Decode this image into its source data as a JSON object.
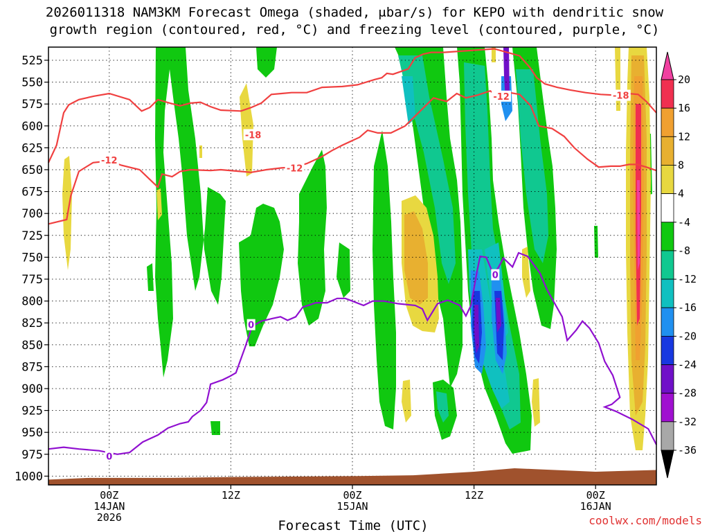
{
  "chart_data": {
    "type": "time-height cross-section",
    "title_line1": "2026011318 NAM3KM Forecast Omega (shaded, μbar/s) for KEPO with dendritic snow",
    "title_line2": "growth region (contoured, red, °C) and freezing level (contoured, purple, °C)",
    "xlabel": "Forecast Time (UTC)",
    "credit": "coolwx.com/models",
    "x_range_hours": [
      -6,
      54
    ],
    "y_range_hpa": [
      510,
      1010
    ],
    "pressure_levels": [
      525,
      550,
      575,
      600,
      625,
      650,
      675,
      700,
      725,
      750,
      775,
      800,
      825,
      850,
      875,
      900,
      925,
      950,
      975,
      1000
    ],
    "x_ticks": [
      {
        "hour": 0,
        "line1": "00Z",
        "line2": "14JAN",
        "line3": "2026"
      },
      {
        "hour": 12,
        "line1": "12Z",
        "line2": "",
        "line3": ""
      },
      {
        "hour": 24,
        "line1": "00Z",
        "line2": "15JAN",
        "line3": ""
      },
      {
        "hour": 36,
        "line1": "12Z",
        "line2": "",
        "line3": ""
      },
      {
        "hour": 48,
        "line1": "00Z",
        "line2": "16JAN",
        "line3": ""
      }
    ],
    "colorbar": {
      "labels": [
        "20",
        "16",
        "12",
        "8",
        "4",
        "-4",
        "-8",
        "-12",
        "-16",
        "-20",
        "-24",
        "-28",
        "-32",
        "-36"
      ],
      "bins": [
        {
          "range": "16 to 20",
          "color": "#f03050"
        },
        {
          "range": "12 to 16",
          "color": "#f0a030"
        },
        {
          "range": "8 to 12",
          "color": "#e8b030"
        },
        {
          "range": "4 to 8",
          "color": "#e8d840"
        },
        {
          "range": "-4 to 4",
          "color": "#ffffff"
        },
        {
          "range": "-8 to -4",
          "color": "#10c810"
        },
        {
          "range": "-12 to -8",
          "color": "#10c890"
        },
        {
          "range": "-16 to -12",
          "color": "#10c0c0"
        },
        {
          "range": "-20 to -16",
          "color": "#2090f0"
        },
        {
          "range": "-24 to -20",
          "color": "#1838e0"
        },
        {
          "range": "-28 to -24",
          "color": "#7010c8"
        },
        {
          "range": "-32 to -28",
          "color": "#a010d0"
        },
        {
          "range": "-36 to -32",
          "color": "#a8a8a8"
        }
      ],
      "top_cap_color": "#f040a0",
      "bottom_cap_color": "#000000"
    },
    "colors": {
      "dgz_line": "#f04040",
      "freezing_line": "#9010d0",
      "terrain": "#a0522d",
      "grid": "#000000"
    },
    "contour_labels": [
      {
        "text": "-12",
        "hour": 0,
        "p": 639,
        "color": "#f04040"
      },
      {
        "text": "-18",
        "hour": 14.2,
        "p": 610,
        "color": "#f04040"
      },
      {
        "text": "-12",
        "hour": 18.3,
        "p": 648,
        "color": "#f04040"
      },
      {
        "text": "-12",
        "hour": 38.7,
        "p": 566,
        "color": "#f04040"
      },
      {
        "text": "-18",
        "hour": 50.5,
        "p": 565,
        "color": "#f04040"
      },
      {
        "text": "0",
        "hour": 0,
        "p": 977,
        "color": "#9010d0"
      },
      {
        "text": "0",
        "hour": 14,
        "p": 827,
        "color": "#9010d0"
      },
      {
        "text": "0",
        "hour": 38.1,
        "p": 770,
        "color": "#9010d0"
      }
    ],
    "dgz_upper_line": [
      [
        -6,
        712
      ],
      [
        -4.2,
        707
      ],
      [
        -3.8,
        680
      ],
      [
        -3,
        652
      ],
      [
        -1.6,
        642
      ],
      [
        0,
        640
      ],
      [
        1.2,
        645
      ],
      [
        3,
        650
      ],
      [
        4.8,
        670
      ],
      [
        5.2,
        655
      ],
      [
        6.2,
        658
      ],
      [
        7,
        652
      ],
      [
        8,
        650
      ],
      [
        10,
        651
      ],
      [
        11,
        650
      ],
      [
        13,
        652
      ],
      [
        14,
        653
      ],
      [
        15.5,
        650
      ],
      [
        17,
        648
      ],
      [
        18.3,
        647
      ],
      [
        19.5,
        643
      ],
      [
        21,
        635
      ],
      [
        22,
        628
      ],
      [
        23,
        622
      ],
      [
        24.7,
        613
      ],
      [
        25.5,
        605
      ],
      [
        26.5,
        608
      ],
      [
        27.8,
        608
      ],
      [
        29.2,
        600
      ],
      [
        32,
        568
      ],
      [
        33.3,
        572
      ],
      [
        34.3,
        563
      ],
      [
        35.2,
        568
      ],
      [
        36.3,
        565
      ],
      [
        37.6,
        560
      ],
      [
        38.6,
        568
      ],
      [
        39.5,
        562
      ],
      [
        40.5,
        564
      ],
      [
        41.6,
        577
      ],
      [
        42.4,
        600
      ],
      [
        43.7,
        603
      ],
      [
        44.9,
        612
      ],
      [
        45.9,
        625
      ],
      [
        47.2,
        638
      ],
      [
        48.3,
        647
      ],
      [
        49.5,
        646
      ],
      [
        50.4,
        646
      ],
      [
        51.3,
        644
      ],
      [
        52.1,
        644
      ],
      [
        53,
        647
      ],
      [
        54,
        651
      ]
    ],
    "dgz_lower_line": [
      [
        -6,
        642
      ],
      [
        -5.2,
        622
      ],
      [
        -4.5,
        585
      ],
      [
        -4,
        576
      ],
      [
        -3,
        570
      ],
      [
        -1.5,
        566
      ],
      [
        0,
        563
      ],
      [
        2,
        570
      ],
      [
        3.2,
        583
      ],
      [
        4,
        579
      ],
      [
        4.8,
        570
      ],
      [
        6,
        574
      ],
      [
        7,
        577
      ],
      [
        8,
        574
      ],
      [
        9,
        573
      ],
      [
        10,
        578
      ],
      [
        11,
        582
      ],
      [
        13,
        583
      ],
      [
        14,
        579
      ],
      [
        15,
        574
      ],
      [
        16,
        564
      ],
      [
        17,
        563
      ],
      [
        18,
        562
      ],
      [
        19.5,
        562
      ],
      [
        21,
        556
      ],
      [
        23,
        555
      ],
      [
        24.5,
        553
      ],
      [
        26.2,
        547
      ],
      [
        26.9,
        545
      ],
      [
        27.4,
        540
      ],
      [
        28,
        541
      ],
      [
        29.5,
        535
      ],
      [
        30.2,
        522
      ],
      [
        31,
        518
      ],
      [
        31.8,
        516
      ],
      [
        33,
        516
      ],
      [
        38,
        512
      ],
      [
        40.5,
        520
      ],
      [
        41.5,
        533
      ],
      [
        42.2,
        545
      ],
      [
        43,
        552
      ],
      [
        44.2,
        556
      ],
      [
        45.5,
        559
      ],
      [
        47,
        562
      ],
      [
        48.5,
        564
      ],
      [
        50,
        565
      ],
      [
        51.2,
        563
      ],
      [
        52.2,
        564
      ],
      [
        53,
        572
      ],
      [
        54,
        585
      ]
    ],
    "freezing_level_line": [
      [
        -6,
        969
      ],
      [
        -4.5,
        967
      ],
      [
        -3,
        969
      ],
      [
        -1,
        971
      ],
      [
        0.8,
        975
      ],
      [
        2,
        973
      ],
      [
        3.3,
        961
      ],
      [
        4.8,
        953
      ],
      [
        5.8,
        945
      ],
      [
        7,
        940
      ],
      [
        7.8,
        938
      ],
      [
        8.2,
        932
      ],
      [
        9,
        925
      ],
      [
        9.6,
        916
      ],
      [
        9.8,
        906
      ],
      [
        10,
        895
      ],
      [
        11.2,
        890
      ],
      [
        11.9,
        886
      ],
      [
        12.5,
        882
      ],
      [
        13.4,
        853
      ],
      [
        14.1,
        829
      ],
      [
        15,
        823
      ],
      [
        16.1,
        820
      ],
      [
        16.9,
        818
      ],
      [
        17.6,
        822
      ],
      [
        18.4,
        818
      ],
      [
        19.1,
        807
      ],
      [
        20.4,
        802
      ],
      [
        21.5,
        802
      ],
      [
        22.5,
        797
      ],
      [
        23.3,
        797
      ],
      [
        25.1,
        805
      ],
      [
        26,
        800
      ],
      [
        27.1,
        800
      ],
      [
        28.5,
        803
      ],
      [
        30.2,
        805
      ],
      [
        30.9,
        809
      ],
      [
        31.4,
        822
      ],
      [
        32.4,
        803
      ],
      [
        33.4,
        799
      ],
      [
        34.6,
        805
      ],
      [
        35.2,
        817
      ],
      [
        35.7,
        805
      ],
      [
        36.3,
        766
      ],
      [
        36.6,
        749
      ],
      [
        37.2,
        750
      ],
      [
        37.9,
        769
      ],
      [
        38.4,
        762
      ],
      [
        38.9,
        751
      ],
      [
        39.8,
        761
      ],
      [
        40.4,
        745
      ],
      [
        41.3,
        749
      ],
      [
        42.5,
        768
      ],
      [
        43.2,
        787
      ],
      [
        44.7,
        818
      ],
      [
        45.2,
        845
      ],
      [
        46.1,
        833
      ],
      [
        46.7,
        823
      ],
      [
        47.4,
        831
      ],
      [
        48.3,
        848
      ],
      [
        48.9,
        869
      ],
      [
        49.7,
        885
      ],
      [
        50.4,
        910
      ],
      [
        49.6,
        918
      ],
      [
        48.9,
        921
      ],
      [
        50,
        926
      ],
      [
        51.6,
        935
      ],
      [
        53.2,
        946
      ],
      [
        54,
        964
      ]
    ]
  }
}
